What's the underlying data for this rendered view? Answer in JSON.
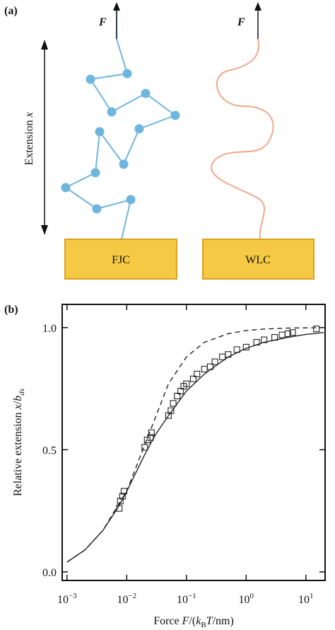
{
  "panel_a": {
    "label": "(a)",
    "force_label_left": "F",
    "force_label_right": "F",
    "axis_label": [
      "Extension ",
      "x"
    ],
    "boxes": [
      "FJC",
      "WLC"
    ]
  },
  "chart_data": {
    "type": "line",
    "panel_label": "(b)",
    "xlabel": [
      "Force ",
      "F",
      "/(",
      "k",
      "B",
      "T",
      "/nm)"
    ],
    "ylabel": [
      "Relative extension ",
      "x",
      "/",
      "b",
      "ds"
    ],
    "xscale": "log",
    "xlim": [
      0.00083,
      21
    ],
    "ylim": [
      -0.035,
      1.095
    ],
    "xticks": [
      {
        "value": 0.001,
        "label": "10−3"
      },
      {
        "value": 0.01,
        "label": "10−2"
      },
      {
        "value": 0.1,
        "label": "10−1"
      },
      {
        "value": 1,
        "label": "100"
      },
      {
        "value": 10,
        "label": "101"
      }
    ],
    "yticks": [
      {
        "value": 0,
        "label": "0.0"
      },
      {
        "value": 0.5,
        "label": "0.5"
      },
      {
        "value": 1,
        "label": "1.0"
      }
    ],
    "series": [
      {
        "color": "#222222",
        "marker": "square",
        "line": false,
        "x": [
          0.0075,
          0.0078,
          0.0085,
          0.009,
          0.02,
          0.022,
          0.025,
          0.026,
          0.05,
          0.055,
          0.06,
          0.07,
          0.08,
          0.09,
          0.1,
          0.13,
          0.15,
          0.2,
          0.25,
          0.3,
          0.4,
          0.5,
          0.7,
          1,
          1.5,
          2,
          3,
          4,
          5,
          6,
          15
        ],
        "values": [
          0.26,
          0.29,
          0.31,
          0.33,
          0.51,
          0.54,
          0.55,
          0.57,
          0.64,
          0.66,
          0.69,
          0.72,
          0.74,
          0.76,
          0.77,
          0.79,
          0.81,
          0.83,
          0.84,
          0.86,
          0.88,
          0.89,
          0.91,
          0.92,
          0.94,
          0.95,
          0.96,
          0.97,
          0.975,
          0.98,
          0.995
        ]
      },
      {
        "color": "#222222",
        "marker": "none",
        "line": true,
        "dash": false,
        "x": [
          0.001,
          0.002,
          0.004,
          0.007,
          0.01,
          0.02,
          0.03,
          0.05,
          0.1,
          0.2,
          0.5,
          1,
          2,
          5,
          10,
          20
        ],
        "values": [
          0.04,
          0.09,
          0.17,
          0.26,
          0.33,
          0.48,
          0.56,
          0.64,
          0.74,
          0.81,
          0.88,
          0.915,
          0.94,
          0.96,
          0.972,
          0.98
        ]
      },
      {
        "color": "#222222",
        "marker": "none",
        "line": true,
        "dash": true,
        "x": [
          0.001,
          0.002,
          0.004,
          0.007,
          0.01,
          0.02,
          0.03,
          0.05,
          0.1,
          0.2,
          0.5,
          1,
          2,
          5,
          10,
          20
        ],
        "values": [
          0.04,
          0.09,
          0.17,
          0.27,
          0.33,
          0.52,
          0.63,
          0.77,
          0.88,
          0.94,
          0.975,
          0.988,
          0.994,
          0.998,
          0.999,
          1.0
        ]
      }
    ]
  }
}
